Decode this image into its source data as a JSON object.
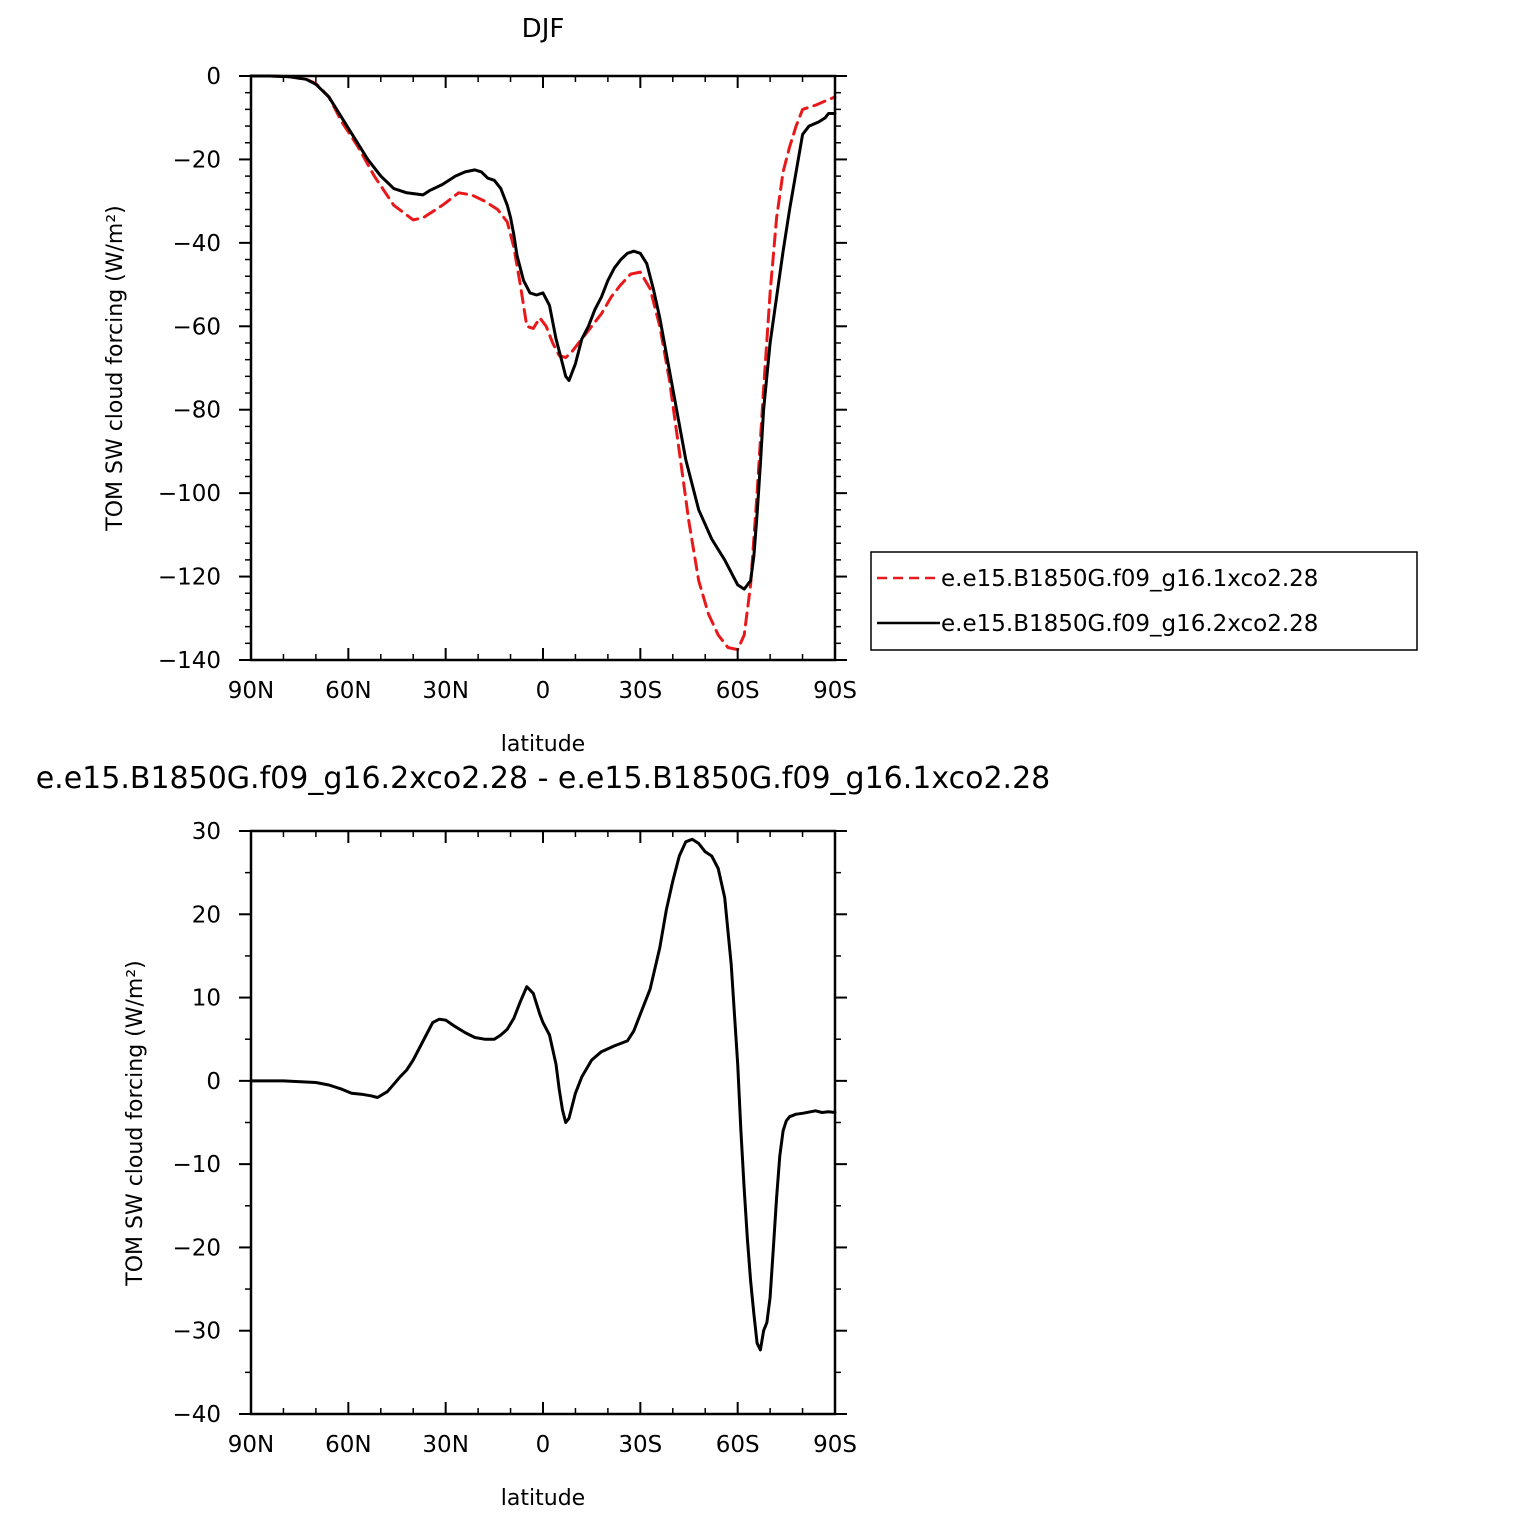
{
  "chart_data": [
    {
      "type": "line",
      "title": "DJF",
      "xlabel": "latitude",
      "ylabel": "TOM SW cloud forcing (W/m²)",
      "xlim": [
        90,
        -90
      ],
      "ylim": [
        -140,
        0
      ],
      "xticks": [
        {
          "v": 90,
          "label": "90N"
        },
        {
          "v": 60,
          "label": "60N"
        },
        {
          "v": 30,
          "label": "30N"
        },
        {
          "v": 0,
          "label": "0"
        },
        {
          "v": -30,
          "label": "30S"
        },
        {
          "v": -60,
          "label": "60S"
        },
        {
          "v": -90,
          "label": "90S"
        }
      ],
      "yticks": [
        0,
        -20,
        -40,
        -60,
        -80,
        -100,
        -120,
        -140
      ],
      "legend_position": "right",
      "series": [
        {
          "name": "e.e15.B1850G.f09_g16.1xco2.28",
          "color": "#e8191b",
          "dash": true,
          "x": [
            90,
            84,
            78,
            73,
            70,
            66,
            62,
            57,
            52,
            46,
            40,
            37,
            35,
            31,
            26,
            22,
            18,
            14,
            11,
            9,
            7,
            5,
            3,
            1,
            -1,
            -3,
            -5,
            -7,
            -9,
            -12,
            -15,
            -18,
            -21,
            -24,
            -27,
            -30,
            -33,
            -36,
            -39,
            -42,
            -45,
            -48,
            -51,
            -54,
            -57,
            -60,
            -62,
            -64,
            -66,
            -68,
            -70,
            -72,
            -74,
            -76,
            -78,
            -80,
            -84,
            -87,
            -90
          ],
          "y": [
            0,
            0,
            -0.2,
            -0.8,
            -1.8,
            -5,
            -11,
            -17,
            -24,
            -31,
            -34.5,
            -34,
            -33,
            -31,
            -28,
            -28.5,
            -30,
            -32,
            -35,
            -41,
            -50,
            -60,
            -60.5,
            -58,
            -60,
            -64,
            -67,
            -67.5,
            -66,
            -63,
            -60,
            -57,
            -53,
            -50,
            -47.5,
            -47,
            -51,
            -60,
            -73,
            -90,
            -107,
            -121,
            -129,
            -134,
            -137,
            -137.5,
            -134,
            -122,
            -100,
            -75,
            -52,
            -34,
            -23,
            -17,
            -12,
            -8,
            -7,
            -6,
            -5
          ]
        },
        {
          "name": "e.e15.B1850G.f09_g16.2xco2.28",
          "color": "#000000",
          "dash": false,
          "x": [
            90,
            84,
            78,
            73,
            70,
            66,
            62,
            58,
            54,
            50,
            46,
            42,
            37,
            35,
            31,
            27,
            24,
            21,
            19,
            17,
            15,
            13,
            11,
            10,
            9,
            8,
            6,
            4,
            2,
            0,
            -2,
            -4,
            -6,
            -7,
            -8,
            -10,
            -12,
            -14,
            -16,
            -18,
            -20,
            -22,
            -24,
            -26,
            -28,
            -30,
            -32,
            -34,
            -36,
            -40,
            -44,
            -48,
            -52,
            -56,
            -60,
            -62,
            -64,
            -65,
            -66,
            -67,
            -68,
            -70,
            -72,
            -74,
            -76,
            -78,
            -80,
            -82,
            -85,
            -87,
            -88,
            -90
          ],
          "y": [
            0,
            0,
            -0.2,
            -0.8,
            -2,
            -5,
            -10,
            -15,
            -20,
            -24,
            -27,
            -28,
            -28.5,
            -27.5,
            -26,
            -24,
            -23,
            -22.5,
            -23,
            -24.5,
            -25,
            -27,
            -31,
            -34,
            -38,
            -43,
            -49,
            -52,
            -52.5,
            -52,
            -55,
            -63,
            -69,
            -72,
            -73,
            -69,
            -63,
            -60,
            -56,
            -53,
            -49,
            -46,
            -44,
            -42.5,
            -42,
            -42.5,
            -45,
            -51,
            -58,
            -75,
            -92,
            -104,
            -111,
            -116,
            -122,
            -123,
            -121,
            -115,
            -105,
            -93,
            -80,
            -64,
            -53,
            -42,
            -32,
            -23,
            -14,
            -12,
            -11,
            -10,
            -9,
            -9
          ]
        }
      ]
    },
    {
      "type": "line",
      "title": "e.e15.B1850G.f09_g16.2xco2.28 - e.e15.B1850G.f09_g16.1xco2.28",
      "xlabel": "latitude",
      "ylabel": "TOM SW cloud forcing (W/m²)",
      "xlim": [
        90,
        -90
      ],
      "ylim": [
        -40,
        30
      ],
      "xticks": [
        {
          "v": 90,
          "label": "90N"
        },
        {
          "v": 60,
          "label": "60N"
        },
        {
          "v": 30,
          "label": "30N"
        },
        {
          "v": 0,
          "label": "0"
        },
        {
          "v": -30,
          "label": "30S"
        },
        {
          "v": -60,
          "label": "60S"
        },
        {
          "v": -90,
          "label": "90S"
        }
      ],
      "yticks": [
        30,
        20,
        10,
        0,
        -10,
        -20,
        -30,
        -40
      ],
      "series": [
        {
          "name": "",
          "color": "#000000",
          "dash": false,
          "x": [
            90,
            80,
            70,
            66,
            62,
            59,
            56,
            53,
            51,
            48,
            46,
            44,
            42,
            40,
            38,
            36,
            34,
            32,
            30,
            27,
            24,
            21,
            18,
            15,
            13,
            11,
            9,
            7,
            5,
            3,
            1,
            0,
            -2,
            -4,
            -5,
            -6,
            -7,
            -8,
            -9,
            -10,
            -12,
            -15,
            -18,
            -22,
            -26,
            -28,
            -30,
            -33,
            -36,
            -38,
            -40,
            -42,
            -44,
            -46,
            -48,
            -50,
            -52,
            -54,
            -56,
            -58,
            -60,
            -61,
            -62,
            -63,
            -64,
            -65,
            -66,
            -67,
            -68,
            -69,
            -70,
            -71,
            -72,
            -73,
            -74,
            -75,
            -76,
            -78,
            -80,
            -84,
            -86,
            -88,
            -90
          ],
          "y": [
            0,
            0,
            -0.2,
            -0.5,
            -1,
            -1.5,
            -1.6,
            -1.8,
            -2,
            -1.3,
            -0.4,
            0.5,
            1.3,
            2.5,
            4,
            5.5,
            7,
            7.4,
            7.3,
            6.5,
            5.8,
            5.2,
            5,
            5,
            5.5,
            6.2,
            7.5,
            9.5,
            11.3,
            10.5,
            8,
            7,
            5.5,
            2,
            -1,
            -3.5,
            -5,
            -4.5,
            -3,
            -1.5,
            0.5,
            2.5,
            3.5,
            4.2,
            4.8,
            6,
            8,
            11,
            16,
            20.5,
            24,
            27,
            28.7,
            29,
            28.5,
            27.5,
            27,
            25.5,
            22,
            14,
            2,
            -6,
            -13,
            -19,
            -24,
            -28,
            -31.5,
            -32.3,
            -30,
            -29,
            -26,
            -20,
            -14,
            -9,
            -6,
            -4.8,
            -4.3,
            -4,
            -3.9,
            -3.6,
            -3.8,
            -3.7,
            -3.8
          ]
        }
      ]
    }
  ]
}
